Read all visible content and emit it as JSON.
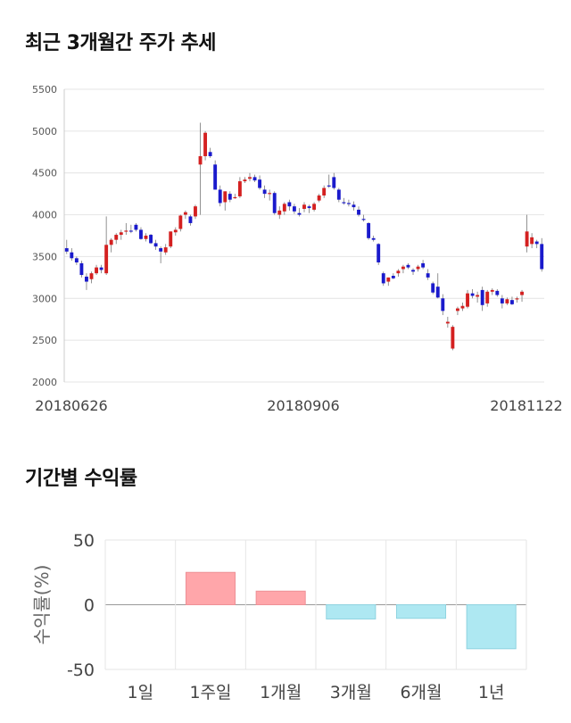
{
  "sections": {
    "price_title": "최근 3개월간 주가 추세",
    "returns_title": "기간별 수익률"
  },
  "colors": {
    "up": "#d42020",
    "down": "#1a1acc",
    "positive": "#ffa6aa",
    "negative": "#aee8f2"
  },
  "chart_data": [
    {
      "type": "candlestick",
      "ylim": [
        2000,
        5500
      ],
      "yticks": [
        "5500",
        "5000",
        "4500",
        "4000",
        "3500",
        "3000",
        "2500",
        "2000"
      ],
      "xticks": [
        "20180626",
        "20180906",
        "20181122"
      ],
      "grid": true,
      "candles": [
        [
          3600,
          3700,
          3530,
          3560
        ],
        [
          3550,
          3600,
          3450,
          3480
        ],
        [
          3480,
          3500,
          3400,
          3430
        ],
        [
          3420,
          3450,
          3250,
          3280
        ],
        [
          3260,
          3300,
          3100,
          3200
        ],
        [
          3230,
          3320,
          3180,
          3300
        ],
        [
          3300,
          3400,
          3280,
          3370
        ],
        [
          3370,
          3400,
          3300,
          3340
        ],
        [
          3300,
          3980,
          3280,
          3640
        ],
        [
          3640,
          3720,
          3550,
          3700
        ],
        [
          3700,
          3780,
          3650,
          3760
        ],
        [
          3760,
          3820,
          3700,
          3790
        ],
        [
          3800,
          3900,
          3760,
          3810
        ],
        [
          3810,
          3880,
          3780,
          3800
        ],
        [
          3880,
          3900,
          3800,
          3820
        ],
        [
          3820,
          3850,
          3700,
          3710
        ],
        [
          3710,
          3780,
          3680,
          3750
        ],
        [
          3760,
          3770,
          3650,
          3660
        ],
        [
          3660,
          3700,
          3580,
          3620
        ],
        [
          3600,
          3620,
          3420,
          3560
        ],
        [
          3550,
          3650,
          3520,
          3610
        ],
        [
          3620,
          3800,
          3600,
          3800
        ],
        [
          3790,
          3850,
          3750,
          3820
        ],
        [
          3830,
          4000,
          3800,
          3990
        ],
        [
          4000,
          4050,
          3950,
          4030
        ],
        [
          3980,
          4000,
          3870,
          3900
        ],
        [
          3980,
          4120,
          3950,
          4100
        ],
        [
          4600,
          5100,
          4000,
          4700
        ],
        [
          4700,
          5000,
          4650,
          4980
        ],
        [
          4750,
          4800,
          4680,
          4700
        ],
        [
          4600,
          4650,
          4300,
          4300
        ],
        [
          4300,
          4350,
          4100,
          4140
        ],
        [
          4150,
          4280,
          4050,
          4280
        ],
        [
          4250,
          4280,
          4150,
          4180
        ],
        [
          4200,
          4250,
          4190,
          4210
        ],
        [
          4220,
          4450,
          4200,
          4400
        ],
        [
          4400,
          4450,
          4380,
          4420
        ],
        [
          4430,
          4500,
          4400,
          4450
        ],
        [
          4450,
          4480,
          4390,
          4410
        ],
        [
          4420,
          4470,
          4300,
          4320
        ],
        [
          4300,
          4350,
          4200,
          4250
        ],
        [
          4250,
          4300,
          4170,
          4260
        ],
        [
          4260,
          4280,
          4000,
          4020
        ],
        [
          4000,
          4100,
          3950,
          4050
        ],
        [
          4040,
          4150,
          4000,
          4130
        ],
        [
          4150,
          4180,
          4050,
          4100
        ],
        [
          4100,
          4130,
          4010,
          4040
        ],
        [
          4020,
          4080,
          3980,
          4000
        ],
        [
          4070,
          4150,
          4030,
          4120
        ],
        [
          4100,
          4120,
          4020,
          4080
        ],
        [
          4060,
          4150,
          4040,
          4130
        ],
        [
          4170,
          4250,
          4150,
          4230
        ],
        [
          4230,
          4350,
          4200,
          4320
        ],
        [
          4350,
          4480,
          4320,
          4340
        ],
        [
          4450,
          4500,
          4300,
          4320
        ],
        [
          4300,
          4320,
          4150,
          4180
        ],
        [
          4150,
          4200,
          4120,
          4140
        ],
        [
          4140,
          4180,
          4100,
          4130
        ],
        [
          4120,
          4160,
          4050,
          4090
        ],
        [
          4060,
          4100,
          3980,
          4000
        ],
        [
          3950,
          4000,
          3920,
          3940
        ],
        [
          3900,
          3910,
          3700,
          3720
        ],
        [
          3720,
          3750,
          3680,
          3700
        ],
        [
          3650,
          3660,
          3400,
          3430
        ],
        [
          3300,
          3320,
          3150,
          3180
        ],
        [
          3200,
          3250,
          3150,
          3250
        ],
        [
          3270,
          3300,
          3230,
          3240
        ],
        [
          3300,
          3350,
          3260,
          3330
        ],
        [
          3350,
          3400,
          3300,
          3380
        ],
        [
          3400,
          3420,
          3350,
          3370
        ],
        [
          3340,
          3360,
          3280,
          3320
        ],
        [
          3350,
          3400,
          3320,
          3380
        ],
        [
          3420,
          3460,
          3350,
          3370
        ],
        [
          3300,
          3350,
          3220,
          3250
        ],
        [
          3180,
          3200,
          3050,
          3070
        ],
        [
          3140,
          3300,
          3000,
          3010
        ],
        [
          3000,
          3050,
          2800,
          2850
        ],
        [
          2700,
          2780,
          2650,
          2720
        ],
        [
          2400,
          2680,
          2380,
          2660
        ],
        [
          2850,
          2900,
          2800,
          2880
        ],
        [
          2880,
          2950,
          2850,
          2910
        ],
        [
          2900,
          3100,
          2880,
          3060
        ],
        [
          3060,
          3110,
          3000,
          3030
        ],
        [
          3020,
          3080,
          2950,
          3040
        ],
        [
          3100,
          3140,
          2850,
          2920
        ],
        [
          2940,
          3100,
          2900,
          3080
        ],
        [
          3080,
          3120,
          3040,
          3100
        ],
        [
          3090,
          3110,
          3020,
          3040
        ],
        [
          3000,
          3040,
          2880,
          2940
        ],
        [
          2940,
          3010,
          2920,
          2990
        ],
        [
          2980,
          3020,
          2920,
          2930
        ],
        [
          2990,
          3020,
          2950,
          3000
        ],
        [
          3040,
          3100,
          2960,
          3080
        ],
        [
          3620,
          4000,
          3550,
          3800
        ],
        [
          3650,
          3780,
          3600,
          3730
        ],
        [
          3680,
          3700,
          3600,
          3650
        ],
        [
          3650,
          3720,
          3320,
          3350
        ]
      ]
    },
    {
      "type": "bar",
      "categories": [
        "1일",
        "1주일",
        "1개월",
        "3개월",
        "6개월",
        "1년"
      ],
      "values": [
        0,
        25,
        10.5,
        -11,
        -10.5,
        -34
      ],
      "ylim": [
        -50,
        50
      ],
      "yticks": [
        "50",
        "0",
        "-50"
      ],
      "ylabel": "수익률(%)",
      "grid": true
    }
  ]
}
